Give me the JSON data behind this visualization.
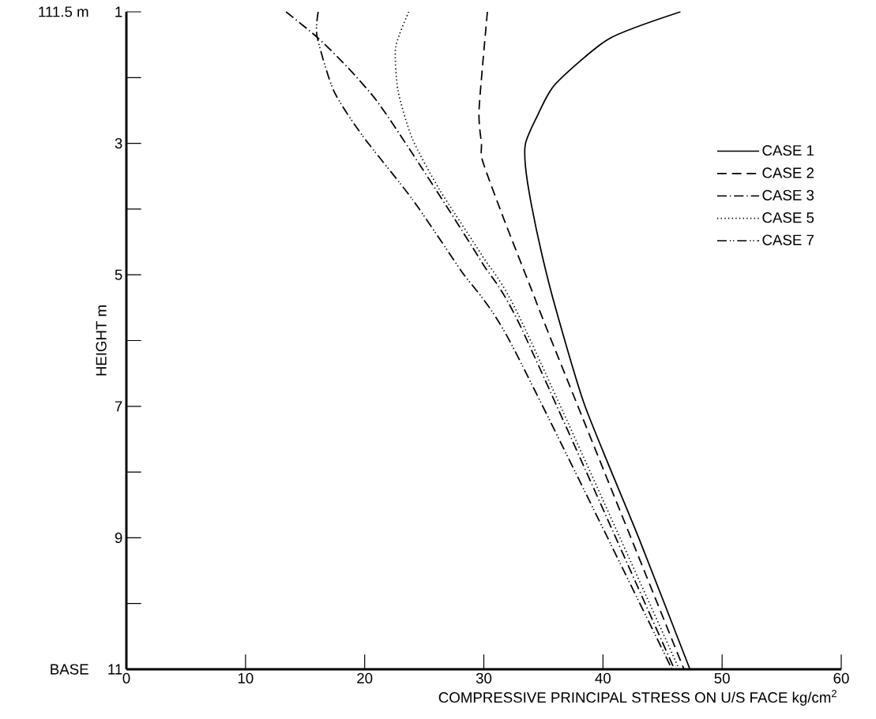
{
  "chart_data": {
    "type": "line",
    "xlabel": "COMPRESSIVE PRINCIPAL STRESS ON U/S FACE kg/cm$^{2}$",
    "ylabel": "HEIGHT  m",
    "xlim": [
      0,
      60
    ],
    "xticks": [
      0,
      10,
      20,
      30,
      40,
      50,
      60
    ],
    "ylim": [
      11,
      1
    ],
    "yticks": [
      1,
      3,
      5,
      7,
      9,
      11
    ],
    "grid": false,
    "legend": "right",
    "marker": "none",
    "annotations": [
      "111.5 m",
      "BASE"
    ],
    "series": [
      {
        "name": "CASE  1",
        "color": "#000000",
        "line_style": "solid",
        "x": [
          46.5,
          40.5,
          36.0,
          34.5,
          33.5,
          33.5,
          34.0,
          34.9,
          36.0,
          38.5,
          43.0,
          47.3
        ],
        "values": [
          1,
          1.41,
          2.1,
          2.58,
          3.0,
          3.36,
          3.94,
          4.71,
          5.49,
          7,
          9,
          11
        ]
      },
      {
        "name": "CASE  2",
        "color": "#000000",
        "line_style": "dashed",
        "x": [
          30.3,
          29.6,
          29.8,
          29.9,
          31.7,
          34.1,
          35.9,
          46.8
        ],
        "values": [
          1,
          2.49,
          3.0,
          3.27,
          4.16,
          5.27,
          6.1,
          11
        ]
      },
      {
        "name": "CASE  3",
        "color": "#000000",
        "line_style": "dashdotted",
        "x": [
          13.4,
          16.1,
          18.6,
          21.0,
          23.7,
          27.2,
          29.9,
          33.2,
          46.0
        ],
        "values": [
          1,
          1.4,
          1.85,
          2.35,
          3.07,
          4.05,
          4.83,
          5.83,
          11
        ]
      },
      {
        "name": "CASE  5",
        "color": "#000000",
        "line_style": "dotted",
        "x": [
          23.7,
          22.6,
          22.8,
          24.0,
          26.3,
          29.9,
          33.2,
          46.4
        ],
        "values": [
          1,
          1.54,
          2.2,
          2.93,
          3.71,
          4.72,
          5.72,
          11
        ]
      },
      {
        "name": "CASE  7",
        "color": "#000000",
        "line_style": "dashdotdotted",
        "x": [
          16.1,
          16.0,
          17.4,
          19.8,
          24.0,
          28.1,
          32.3,
          45.8
        ],
        "values": [
          1,
          1.37,
          2.2,
          2.88,
          3.85,
          4.94,
          6.05,
          11
        ]
      }
    ]
  }
}
